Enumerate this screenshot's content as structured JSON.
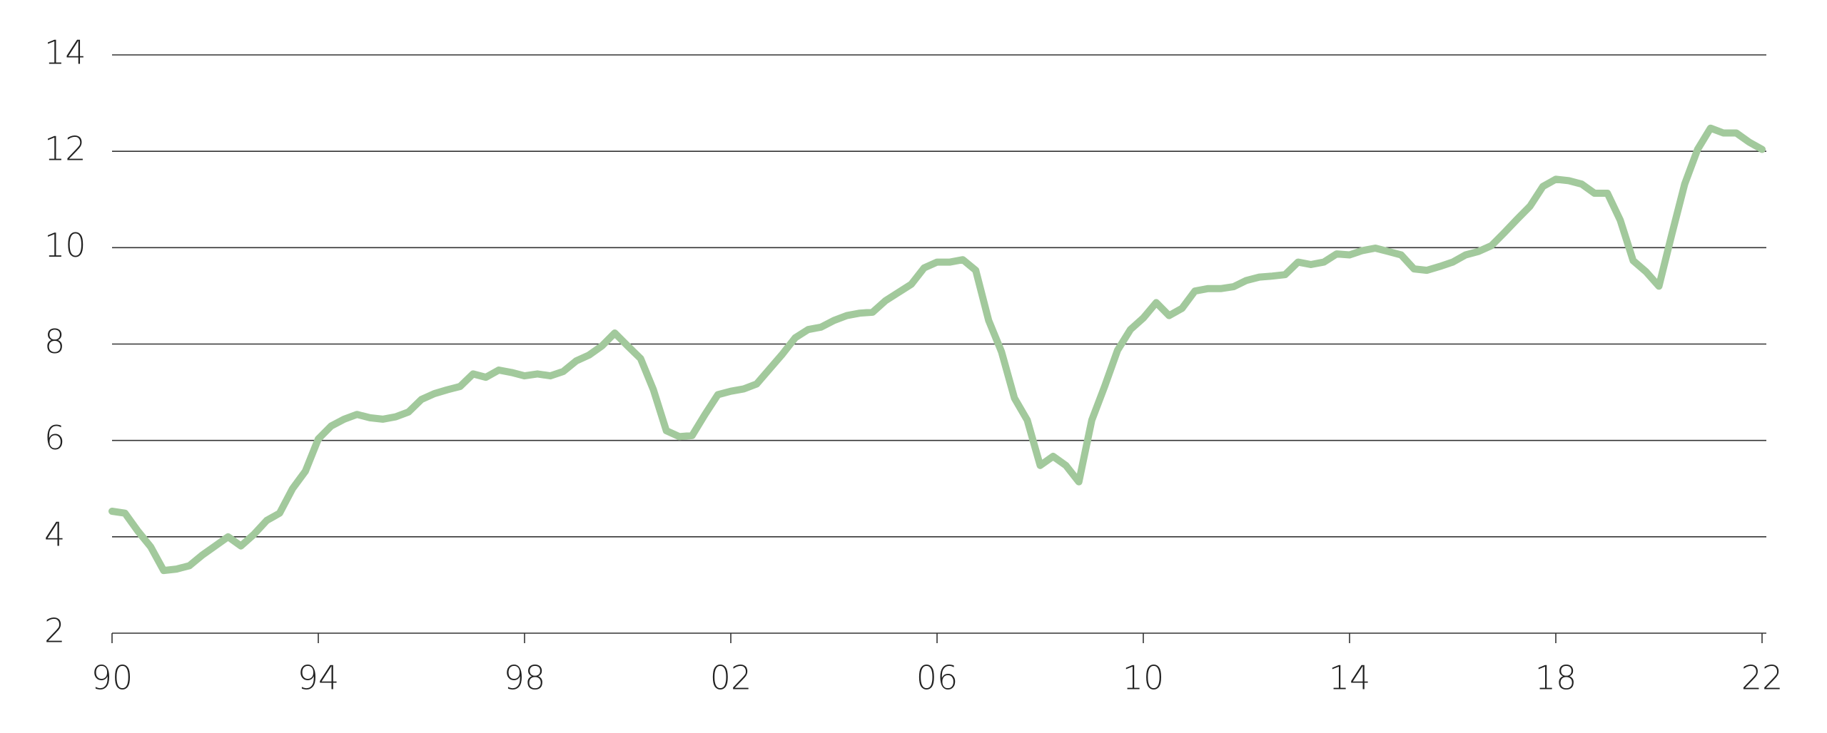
{
  "chart_data": {
    "type": "line",
    "x": [
      1990,
      1990.25,
      1990.5,
      1990.75,
      1991,
      1991.25,
      1991.5,
      1991.75,
      1992,
      1992.25,
      1992.5,
      1992.75,
      1993,
      1993.25,
      1993.5,
      1993.75,
      1994,
      1994.25,
      1994.5,
      1994.75,
      1995,
      1995.25,
      1995.5,
      1995.75,
      1996,
      1996.25,
      1996.5,
      1996.75,
      1997,
      1997.25,
      1997.5,
      1997.75,
      1998,
      1998.25,
      1998.5,
      1998.75,
      1999,
      1999.25,
      1999.5,
      1999.75,
      2000,
      2000.25,
      2000.5,
      2000.75,
      2001,
      2001.25,
      2001.5,
      2001.75,
      2002,
      2002.25,
      2002.5,
      2002.75,
      2003,
      2003.25,
      2003.5,
      2003.75,
      2004,
      2004.25,
      2004.5,
      2004.75,
      2005,
      2005.25,
      2005.5,
      2005.75,
      2006,
      2006.25,
      2006.5,
      2006.75,
      2007,
      2007.25,
      2007.5,
      2007.75,
      2008,
      2008.25,
      2008.5,
      2008.75,
      2009,
      2009.25,
      2009.5,
      2009.75,
      2010,
      2010.25,
      2010.5,
      2010.75,
      2011,
      2011.25,
      2011.5,
      2011.75,
      2012,
      2012.25,
      2012.5,
      2012.75,
      2013,
      2013.25,
      2013.5,
      2013.75,
      2014,
      2014.25,
      2014.5,
      2014.75,
      2015,
      2015.25,
      2015.5,
      2015.75,
      2016,
      2016.25,
      2016.5,
      2016.75,
      2017,
      2017.25,
      2017.5,
      2017.75,
      2018,
      2018.25,
      2018.5,
      2018.75,
      2019,
      2019.25,
      2019.5,
      2019.75,
      2020,
      2020.25,
      2020.5,
      2020.75,
      2021,
      2021.25,
      2021.5,
      2021.75,
      2022
    ],
    "values": [
      4.53,
      4.49,
      4.12,
      3.79,
      3.3,
      3.33,
      3.4,
      3.62,
      3.81,
      4.0,
      3.81,
      4.05,
      4.34,
      4.49,
      5.0,
      5.36,
      6.03,
      6.3,
      6.44,
      6.54,
      6.47,
      6.44,
      6.49,
      6.59,
      6.85,
      6.97,
      7.05,
      7.12,
      7.38,
      7.31,
      7.46,
      7.41,
      7.34,
      7.38,
      7.34,
      7.43,
      7.65,
      7.77,
      7.96,
      8.23,
      7.96,
      7.7,
      7.05,
      6.2,
      6.08,
      6.1,
      6.54,
      6.95,
      7.02,
      7.07,
      7.17,
      7.48,
      7.79,
      8.13,
      8.3,
      8.35,
      8.49,
      8.59,
      8.64,
      8.66,
      8.9,
      9.07,
      9.24,
      9.58,
      9.7,
      9.7,
      9.75,
      9.53,
      8.49,
      7.84,
      6.88,
      6.42,
      5.48,
      5.67,
      5.48,
      5.14,
      6.42,
      7.12,
      7.87,
      8.3,
      8.54,
      8.86,
      8.59,
      8.74,
      9.1,
      9.15,
      9.15,
      9.19,
      9.32,
      9.39,
      9.41,
      9.44,
      9.7,
      9.65,
      9.7,
      9.87,
      9.85,
      9.94,
      9.99,
      9.92,
      9.85,
      9.56,
      9.53,
      9.61,
      9.7,
      9.85,
      9.92,
      10.04,
      10.31,
      10.59,
      10.86,
      11.27,
      11.42,
      11.39,
      11.32,
      11.13,
      11.13,
      10.57,
      9.73,
      9.5,
      9.2,
      10.28,
      11.32,
      12.04,
      12.48,
      12.38,
      12.38,
      12.19,
      12.04
    ],
    "color": "#a2c99c",
    "xlim": [
      1990,
      2022
    ],
    "xticks": [
      {
        "value": 1990,
        "label": "90"
      },
      {
        "value": 1994,
        "label": "94"
      },
      {
        "value": 1998,
        "label": "98"
      },
      {
        "value": 2002,
        "label": "02"
      },
      {
        "value": 2006,
        "label": "06"
      },
      {
        "value": 2010,
        "label": "10"
      },
      {
        "value": 2014,
        "label": "14"
      },
      {
        "value": 2018,
        "label": "18"
      },
      {
        "value": 2022,
        "label": "22"
      }
    ],
    "ylim": [
      2,
      14
    ],
    "yticks": [
      2,
      4,
      6,
      8,
      10,
      12,
      14
    ],
    "grid": true
  }
}
